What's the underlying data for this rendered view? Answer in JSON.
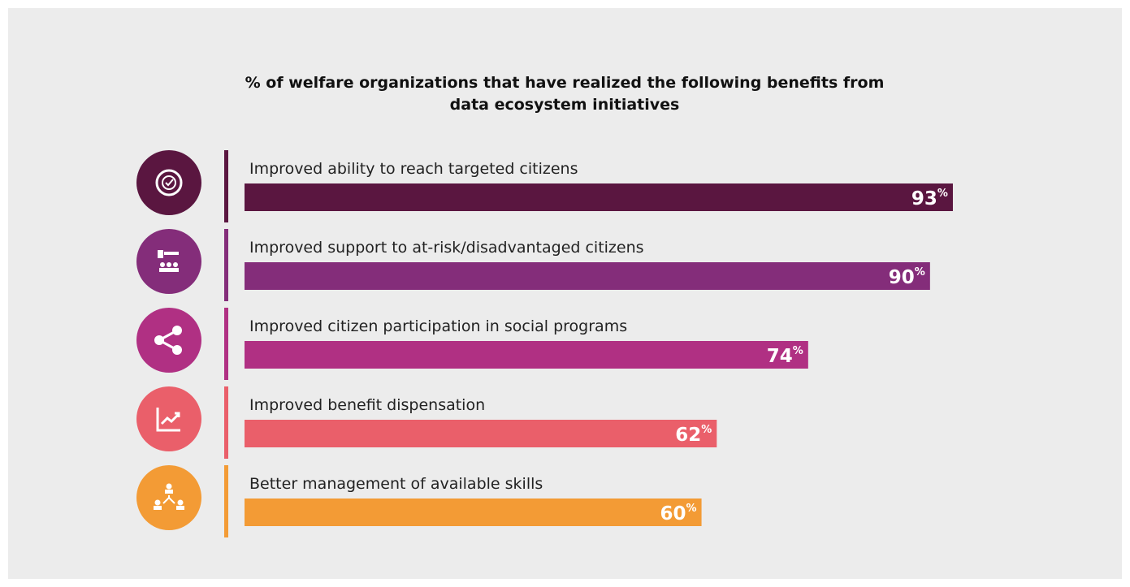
{
  "chart_data": {
    "type": "bar",
    "orientation": "horizontal",
    "title": [
      "% of welfare organizations that have realized the following benefits from",
      "data ecosystem initiatives"
    ],
    "categories": [
      "Improved ability to reach targeted citizens",
      "Improved support to at-risk/disadvantaged citizens",
      "Improved citizen participation in social programs",
      "Improved benefit dispensation",
      "Better management of available skills"
    ],
    "values": [
      93,
      90,
      74,
      62,
      60
    ],
    "unit": "%",
    "colors": [
      "#5a1640",
      "#842d7a",
      "#b03083",
      "#ea5f6a",
      "#f39b35"
    ],
    "xlim": [
      0,
      100
    ]
  }
}
